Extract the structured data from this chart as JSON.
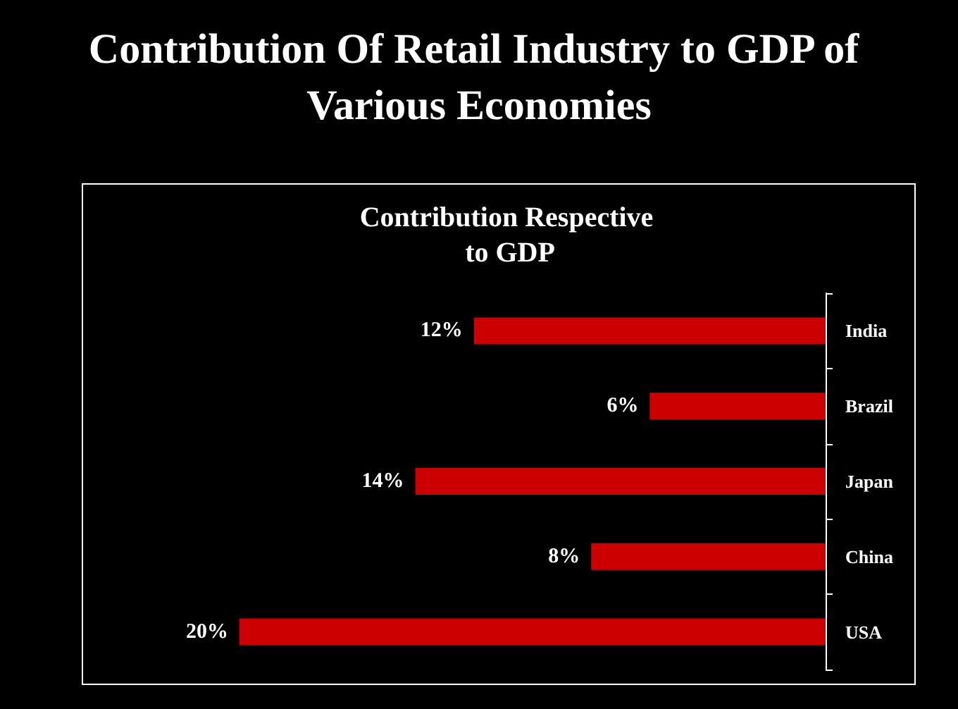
{
  "chart_data": {
    "type": "bar",
    "orientation": "horizontal",
    "title": "Contribution Of Retail Industry to GDP of Various Economies",
    "subtitle": "Contribution Respective to GDP",
    "categories": [
      "India",
      "Brazil",
      "Japan",
      "China",
      "USA"
    ],
    "series": [
      {
        "color": "#cc0000",
        "values": [
          12,
          6,
          14,
          8,
          20
        ],
        "value_labels": [
          "12%",
          "6%",
          "14%",
          "8%",
          "20%"
        ]
      }
    ]
  }
}
